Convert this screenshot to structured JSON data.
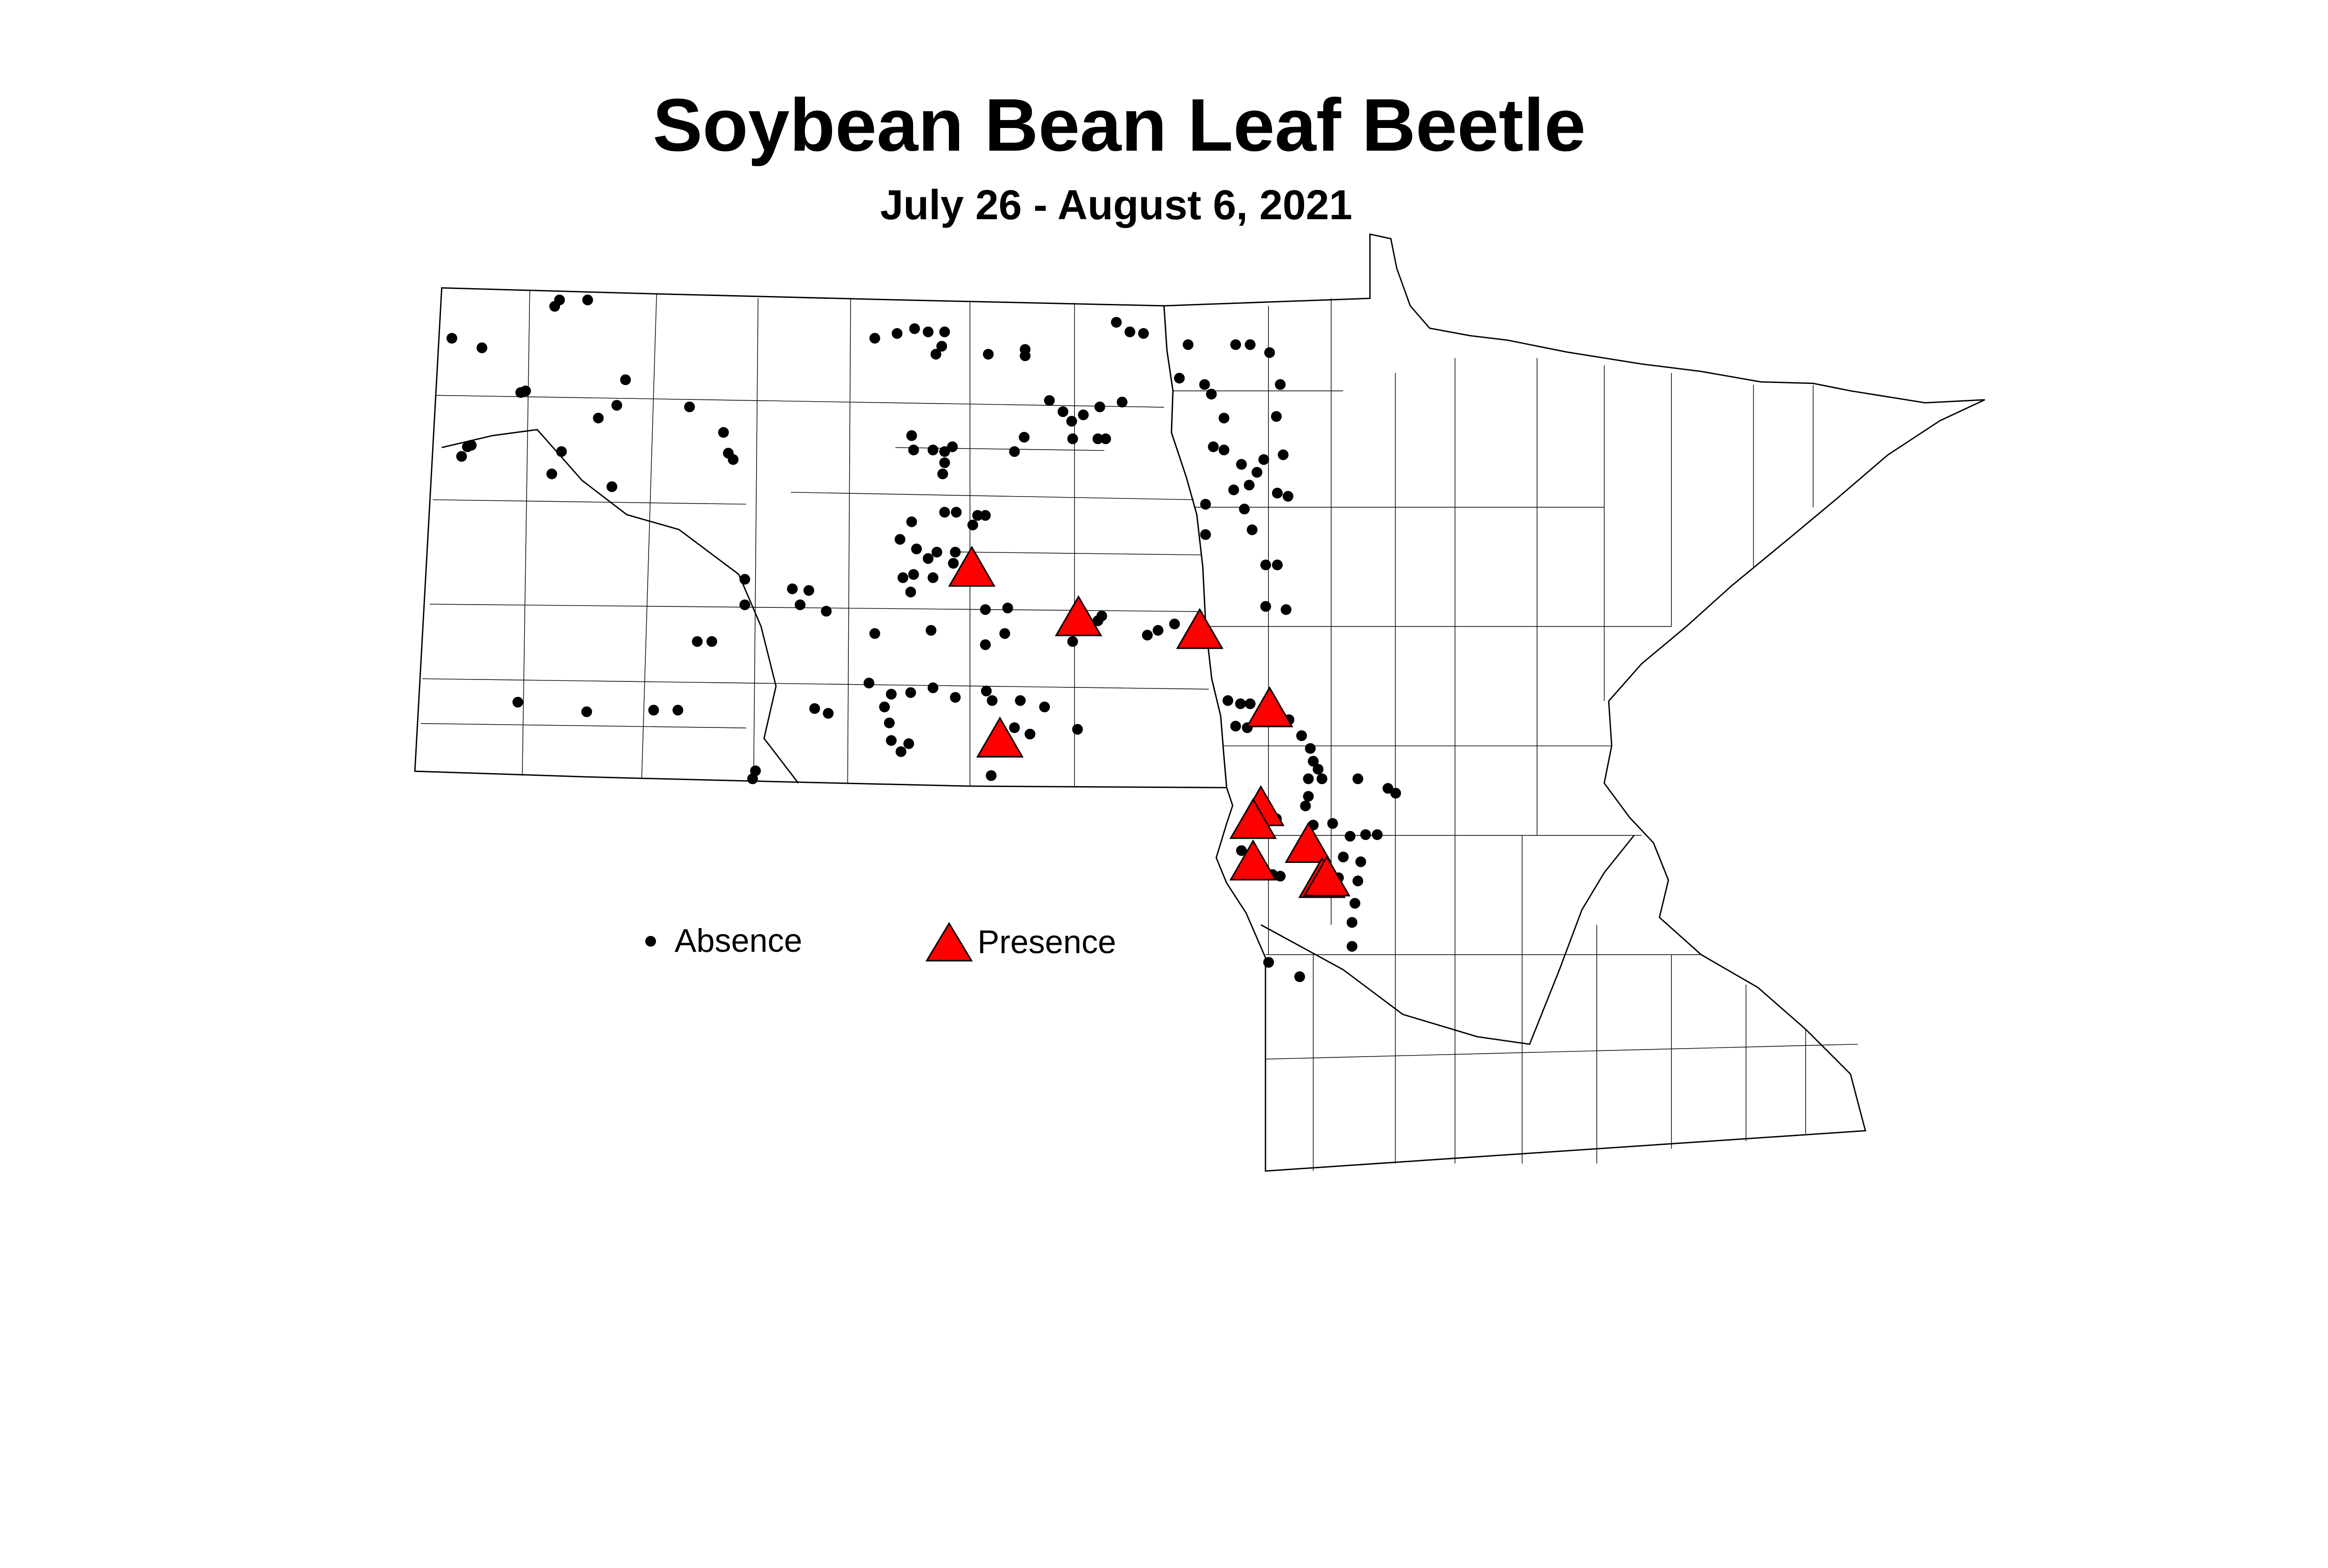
{
  "title": "Soybean Bean Leaf Beetle",
  "subtitle": "July 26 - August 6, 2021",
  "legend": {
    "absence_label": "Absence",
    "presence_label": "Presence"
  },
  "colors": {
    "absence": "#000000",
    "presence": "#ff0000",
    "presence_outline": "#000000",
    "boundary": "#000000",
    "background": "#ffffff"
  },
  "map_data": {
    "region": [
      "North Dakota",
      "Minnesota"
    ],
    "absence_sites": [
      [
        -103.88,
        48.75
      ],
      [
        -103.57,
        48.69
      ],
      [
        -102.82,
        48.95
      ],
      [
        -102.77,
        48.99
      ],
      [
        -102.48,
        48.99
      ],
      [
        -103.17,
        48.41
      ],
      [
        -103.12,
        48.42
      ],
      [
        -102.09,
        48.49
      ],
      [
        -102.18,
        48.33
      ],
      [
        -102.37,
        48.25
      ],
      [
        -101.43,
        48.32
      ],
      [
        -101.08,
        48.16
      ],
      [
        -101.03,
        48.03
      ],
      [
        -100.98,
        47.99
      ],
      [
        -103.72,
        48.07
      ],
      [
        -103.78,
        48.01
      ],
      [
        -103.68,
        48.08
      ],
      [
        -102.75,
        48.04
      ],
      [
        -102.85,
        47.9
      ],
      [
        -102.23,
        47.82
      ],
      [
        -99.52,
        48.75
      ],
      [
        -99.29,
        48.78
      ],
      [
        -99.11,
        48.81
      ],
      [
        -98.97,
        48.79
      ],
      [
        -98.8,
        48.79
      ],
      [
        -98.89,
        48.65
      ],
      [
        -98.83,
        48.7
      ],
      [
        -98.35,
        48.65
      ],
      [
        -97.97,
        48.68
      ],
      [
        -97.97,
        48.64
      ],
      [
        -97.03,
        48.85
      ],
      [
        -96.89,
        48.79
      ],
      [
        -96.75,
        48.78
      ],
      [
        -96.29,
        48.71
      ],
      [
        -95.8,
        48.71
      ],
      [
        -95.65,
        48.71
      ],
      [
        -95.45,
        48.66
      ],
      [
        -97.72,
        48.36
      ],
      [
        -97.58,
        48.29
      ],
      [
        -97.49,
        48.23
      ],
      [
        -97.37,
        48.27
      ],
      [
        -97.2,
        48.32
      ],
      [
        -96.97,
        48.35
      ],
      [
        -97.48,
        48.12
      ],
      [
        -97.22,
        48.12
      ],
      [
        -97.14,
        48.12
      ],
      [
        -97.98,
        48.13
      ],
      [
        -98.08,
        48.04
      ],
      [
        -99.14,
        48.14
      ],
      [
        -99.12,
        48.05
      ],
      [
        -98.92,
        48.05
      ],
      [
        -98.8,
        48.04
      ],
      [
        -98.72,
        48.07
      ],
      [
        -98.8,
        47.97
      ],
      [
        -98.82,
        47.9
      ],
      [
        -96.38,
        48.5
      ],
      [
        -96.12,
        48.46
      ],
      [
        -96.05,
        48.4
      ],
      [
        -95.34,
        48.46
      ],
      [
        -95.92,
        48.25
      ],
      [
        -95.38,
        48.26
      ],
      [
        -96.03,
        48.07
      ],
      [
        -95.92,
        48.05
      ],
      [
        -95.74,
        47.96
      ],
      [
        -95.51,
        47.99
      ],
      [
        -95.31,
        48.02
      ],
      [
        -95.58,
        47.91
      ],
      [
        -95.66,
        47.83
      ],
      [
        -95.82,
        47.8
      ],
      [
        -95.37,
        47.78
      ],
      [
        -95.26,
        47.76
      ],
      [
        -96.11,
        47.71
      ],
      [
        -95.71,
        47.68
      ],
      [
        -96.11,
        47.52
      ],
      [
        -95.63,
        47.55
      ],
      [
        -95.49,
        47.33
      ],
      [
        -95.37,
        47.33
      ],
      [
        -95.49,
        47.07
      ],
      [
        -95.28,
        47.05
      ],
      [
        -98.8,
        47.66
      ],
      [
        -98.68,
        47.66
      ],
      [
        -98.46,
        47.64
      ],
      [
        -98.38,
        47.64
      ],
      [
        -98.51,
        47.58
      ],
      [
        -99.14,
        47.6
      ],
      [
        -99.26,
        47.49
      ],
      [
        -99.09,
        47.43
      ],
      [
        -98.97,
        47.37
      ],
      [
        -98.88,
        47.41
      ],
      [
        -98.69,
        47.41
      ],
      [
        -98.71,
        47.34
      ],
      [
        -99.23,
        47.25
      ],
      [
        -99.12,
        47.27
      ],
      [
        -99.15,
        47.16
      ],
      [
        -98.92,
        47.25
      ],
      [
        -100.37,
        47.18
      ],
      [
        -100.29,
        47.08
      ],
      [
        -100.2,
        47.17
      ],
      [
        -100.86,
        47.24
      ],
      [
        -100.86,
        47.08
      ],
      [
        -100.02,
        47.04
      ],
      [
        -99.52,
        46.9
      ],
      [
        -98.94,
        46.92
      ],
      [
        -98.38,
        47.05
      ],
      [
        -98.15,
        47.06
      ],
      [
        -98.18,
        46.9
      ],
      [
        -98.38,
        46.83
      ],
      [
        -97.18,
        47.01
      ],
      [
        -97.22,
        46.98
      ],
      [
        -97.48,
        46.85
      ],
      [
        -96.6,
        46.92
      ],
      [
        -96.71,
        46.89
      ],
      [
        -96.43,
        46.96
      ],
      [
        -101.35,
        46.85
      ],
      [
        -101.2,
        46.85
      ],
      [
        -99.58,
        46.59
      ],
      [
        -99.35,
        46.52
      ],
      [
        -99.15,
        46.53
      ],
      [
        -98.92,
        46.56
      ],
      [
        -98.69,
        46.5
      ],
      [
        -98.37,
        46.54
      ],
      [
        -98.31,
        46.48
      ],
      [
        -98.02,
        46.48
      ],
      [
        -97.92,
        46.27
      ],
      [
        -98.08,
        46.31
      ],
      [
        -99.42,
        46.44
      ],
      [
        -99.37,
        46.34
      ],
      [
        -99.35,
        46.23
      ],
      [
        -99.17,
        46.21
      ],
      [
        -99.25,
        46.16
      ],
      [
        -100.0,
        46.4
      ],
      [
        -100.14,
        46.43
      ],
      [
        -103.2,
        46.47
      ],
      [
        -102.49,
        46.41
      ],
      [
        -101.8,
        46.42
      ],
      [
        -101.55,
        46.42
      ],
      [
        -100.75,
        46.04
      ],
      [
        -100.78,
        45.99
      ],
      [
        -98.32,
        46.01
      ],
      [
        -97.43,
        46.3
      ],
      [
        -97.77,
        46.44
      ],
      [
        -95.88,
        46.48
      ],
      [
        -95.75,
        46.46
      ],
      [
        -95.65,
        46.46
      ],
      [
        -95.68,
        46.31
      ],
      [
        -95.8,
        46.32
      ],
      [
        -95.25,
        46.36
      ],
      [
        -95.12,
        46.26
      ],
      [
        -95.03,
        46.18
      ],
      [
        -95.0,
        46.1
      ],
      [
        -94.95,
        46.05
      ],
      [
        -95.05,
        45.99
      ],
      [
        -94.91,
        45.99
      ],
      [
        -95.05,
        45.88
      ],
      [
        -95.08,
        45.82
      ],
      [
        -94.54,
        45.99
      ],
      [
        -94.23,
        45.93
      ],
      [
        -94.15,
        45.9
      ],
      [
        -95.38,
        45.74
      ],
      [
        -95.0,
        45.7
      ],
      [
        -94.8,
        45.71
      ],
      [
        -94.62,
        45.63
      ],
      [
        -94.46,
        45.64
      ],
      [
        -94.34,
        45.64
      ],
      [
        -94.69,
        45.5
      ],
      [
        -94.51,
        45.47
      ],
      [
        -95.74,
        45.54
      ],
      [
        -95.63,
        45.51
      ],
      [
        -95.42,
        45.39
      ],
      [
        -95.34,
        45.38
      ],
      [
        -94.74,
        45.37
      ],
      [
        -94.54,
        45.35
      ],
      [
        -94.57,
        45.21
      ],
      [
        -94.6,
        45.09
      ],
      [
        -94.6,
        44.94
      ],
      [
        -95.46,
        44.84
      ],
      [
        -95.14,
        44.75
      ]
    ],
    "presence_sites": [
      [
        -98.52,
        47.31
      ],
      [
        -97.42,
        47.0
      ],
      [
        -96.17,
        46.92
      ],
      [
        -95.45,
        46.43
      ],
      [
        -98.23,
        46.24
      ],
      [
        -95.54,
        45.81
      ],
      [
        -95.62,
        45.73
      ],
      [
        -95.05,
        45.58
      ],
      [
        -95.62,
        45.47
      ],
      [
        -94.91,
        45.36
      ],
      [
        -94.86,
        45.37
      ]
    ]
  }
}
